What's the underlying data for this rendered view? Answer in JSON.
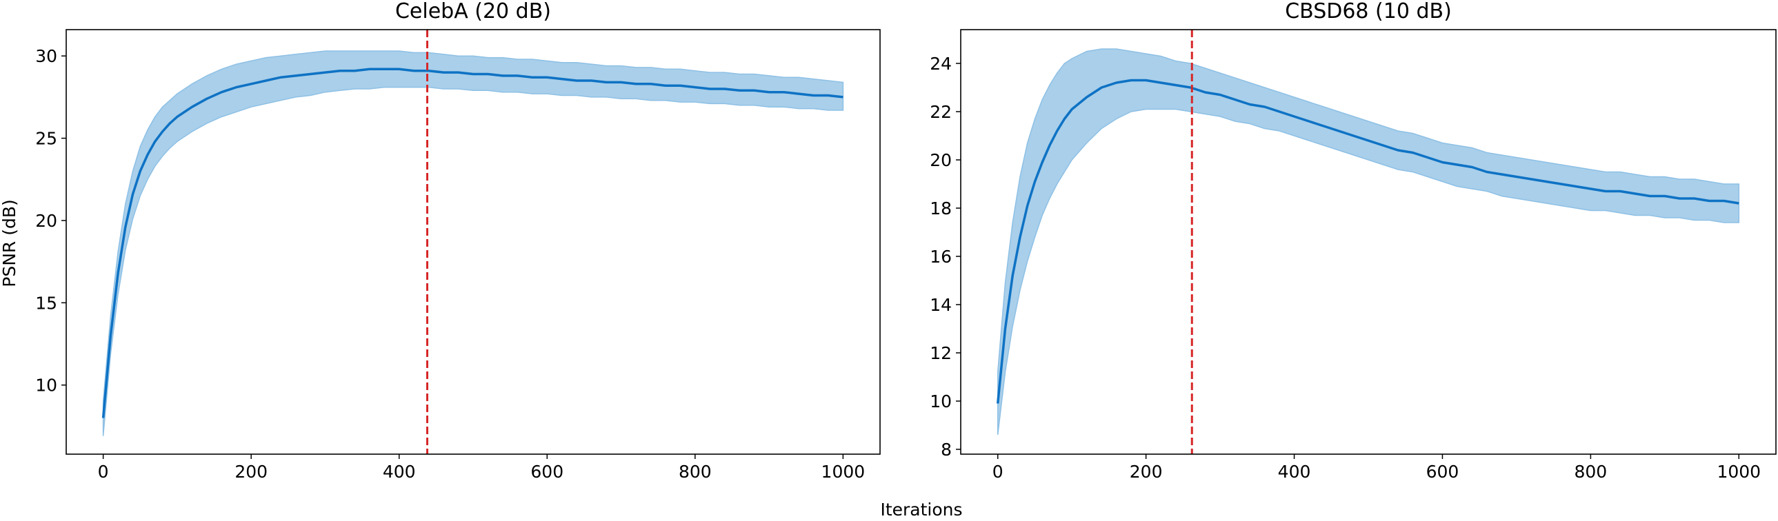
{
  "figure": {
    "xlabel": "Iterations",
    "ylabel": "PSNR (dB)"
  },
  "colors": {
    "line": "#0e72c4",
    "band": "#a9cfea",
    "band_edge": "#8ec0e5",
    "vline": "#d62728"
  },
  "chart_data": [
    {
      "type": "line",
      "title": "CelebA (20 dB)",
      "xlabel": "",
      "ylabel": "PSNR (dB)",
      "xlim": [
        -50,
        1050
      ],
      "ylim": [
        5.8,
        31.6
      ],
      "xticks": [
        0,
        200,
        400,
        600,
        800,
        1000
      ],
      "yticks": [
        10,
        15,
        20,
        25,
        30
      ],
      "vline_x": 438,
      "grid": false,
      "series": [
        {
          "x": [
            0,
            10,
            20,
            30,
            40,
            50,
            60,
            70,
            80,
            90,
            100,
            120,
            140,
            160,
            180,
            200,
            220,
            240,
            260,
            280,
            300,
            320,
            340,
            360,
            380,
            400,
            420,
            440,
            460,
            480,
            500,
            520,
            540,
            560,
            580,
            600,
            620,
            640,
            660,
            680,
            700,
            720,
            740,
            760,
            780,
            800,
            820,
            840,
            860,
            880,
            900,
            920,
            940,
            960,
            980,
            1000
          ],
          "y": [
            8.0,
            13.0,
            16.8,
            19.6,
            21.6,
            23.0,
            24.0,
            24.8,
            25.4,
            25.9,
            26.3,
            26.9,
            27.4,
            27.8,
            28.1,
            28.3,
            28.5,
            28.7,
            28.8,
            28.9,
            29.0,
            29.1,
            29.1,
            29.2,
            29.2,
            29.2,
            29.1,
            29.1,
            29.0,
            29.0,
            28.9,
            28.9,
            28.8,
            28.8,
            28.7,
            28.7,
            28.6,
            28.5,
            28.5,
            28.4,
            28.4,
            28.3,
            28.3,
            28.2,
            28.2,
            28.1,
            28.0,
            28.0,
            27.9,
            27.9,
            27.8,
            27.8,
            27.7,
            27.6,
            27.6,
            27.5
          ],
          "lower": [
            6.9,
            11.9,
            15.5,
            18.2,
            20.1,
            21.5,
            22.5,
            23.3,
            23.9,
            24.4,
            24.8,
            25.4,
            25.9,
            26.3,
            26.6,
            26.9,
            27.1,
            27.3,
            27.5,
            27.6,
            27.8,
            27.9,
            28.0,
            28.0,
            28.1,
            28.1,
            28.1,
            28.1,
            28.0,
            28.0,
            27.9,
            27.9,
            27.8,
            27.8,
            27.7,
            27.7,
            27.6,
            27.6,
            27.5,
            27.5,
            27.4,
            27.4,
            27.3,
            27.3,
            27.2,
            27.2,
            27.1,
            27.1,
            27.0,
            27.0,
            26.9,
            26.9,
            26.8,
            26.8,
            26.7,
            26.7
          ],
          "upper": [
            9.0,
            14.2,
            18.1,
            21.0,
            23.0,
            24.5,
            25.5,
            26.3,
            26.9,
            27.3,
            27.7,
            28.3,
            28.8,
            29.2,
            29.5,
            29.7,
            29.9,
            30.0,
            30.1,
            30.2,
            30.3,
            30.3,
            30.3,
            30.3,
            30.3,
            30.3,
            30.2,
            30.2,
            30.1,
            30.0,
            30.0,
            29.9,
            29.9,
            29.8,
            29.8,
            29.7,
            29.6,
            29.6,
            29.5,
            29.4,
            29.4,
            29.3,
            29.3,
            29.2,
            29.2,
            29.1,
            29.0,
            29.0,
            28.9,
            28.9,
            28.8,
            28.7,
            28.7,
            28.6,
            28.5,
            28.4
          ]
        }
      ]
    },
    {
      "type": "line",
      "title": "CBSD68 (10 dB)",
      "xlabel": "",
      "ylabel": "",
      "xlim": [
        -50,
        1050
      ],
      "ylim": [
        7.8,
        25.4
      ],
      "xticks": [
        0,
        200,
        400,
        600,
        800,
        1000
      ],
      "yticks": [
        8,
        10,
        12,
        14,
        16,
        18,
        20,
        22,
        24
      ],
      "vline_x": 262,
      "grid": false,
      "series": [
        {
          "x": [
            0,
            10,
            20,
            30,
            40,
            50,
            60,
            70,
            80,
            90,
            100,
            120,
            140,
            160,
            180,
            200,
            220,
            240,
            260,
            280,
            300,
            320,
            340,
            360,
            380,
            400,
            420,
            440,
            460,
            480,
            500,
            520,
            540,
            560,
            580,
            600,
            620,
            640,
            660,
            680,
            700,
            720,
            740,
            760,
            780,
            800,
            820,
            840,
            860,
            880,
            900,
            920,
            940,
            960,
            980,
            1000
          ],
          "y": [
            9.9,
            13.0,
            15.2,
            16.8,
            18.1,
            19.1,
            19.9,
            20.6,
            21.2,
            21.7,
            22.1,
            22.6,
            23.0,
            23.2,
            23.3,
            23.3,
            23.2,
            23.1,
            23.0,
            22.8,
            22.7,
            22.5,
            22.3,
            22.2,
            22.0,
            21.8,
            21.6,
            21.4,
            21.2,
            21.0,
            20.8,
            20.6,
            20.4,
            20.3,
            20.1,
            19.9,
            19.8,
            19.7,
            19.5,
            19.4,
            19.3,
            19.2,
            19.1,
            19.0,
            18.9,
            18.8,
            18.7,
            18.7,
            18.6,
            18.5,
            18.5,
            18.4,
            18.4,
            18.3,
            18.3,
            18.2
          ],
          "lower": [
            8.6,
            11.2,
            13.1,
            14.6,
            15.8,
            16.8,
            17.7,
            18.4,
            19.0,
            19.5,
            20.0,
            20.7,
            21.3,
            21.7,
            22.0,
            22.1,
            22.1,
            22.1,
            22.0,
            21.9,
            21.8,
            21.6,
            21.5,
            21.3,
            21.2,
            21.0,
            20.8,
            20.6,
            20.4,
            20.2,
            20.0,
            19.8,
            19.6,
            19.5,
            19.3,
            19.1,
            18.9,
            18.8,
            18.7,
            18.5,
            18.4,
            18.3,
            18.2,
            18.1,
            18.0,
            17.9,
            17.9,
            17.8,
            17.7,
            17.7,
            17.6,
            17.6,
            17.5,
            17.5,
            17.4,
            17.4
          ],
          "upper": [
            11.2,
            14.9,
            17.4,
            19.3,
            20.7,
            21.7,
            22.5,
            23.1,
            23.6,
            24.0,
            24.2,
            24.5,
            24.6,
            24.6,
            24.5,
            24.4,
            24.3,
            24.1,
            24.0,
            23.8,
            23.6,
            23.4,
            23.2,
            23.0,
            22.8,
            22.6,
            22.4,
            22.2,
            22.0,
            21.8,
            21.6,
            21.4,
            21.2,
            21.1,
            20.9,
            20.7,
            20.6,
            20.5,
            20.3,
            20.2,
            20.1,
            20.0,
            19.9,
            19.8,
            19.7,
            19.6,
            19.5,
            19.5,
            19.4,
            19.3,
            19.3,
            19.2,
            19.2,
            19.1,
            19.0,
            19.0
          ]
        }
      ]
    }
  ]
}
